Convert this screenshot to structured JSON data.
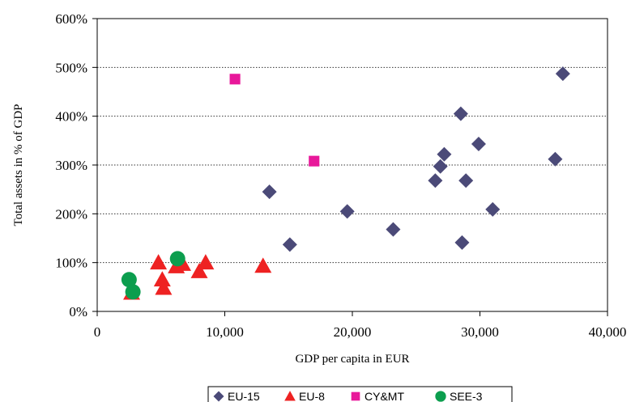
{
  "chart_data": {
    "type": "scatter",
    "xlabel": "GDP per capita in EUR",
    "ylabel": "Total assets in % of GDP",
    "xlim": [
      0,
      40000
    ],
    "ylim": [
      0,
      600
    ],
    "x_ticks": [
      "0",
      "10,000",
      "20,000",
      "30,000",
      "40,000"
    ],
    "y_ticks": [
      "0%",
      "100%",
      "200%",
      "300%",
      "400%",
      "500%",
      "600%"
    ],
    "grid": "horizontal dotted",
    "legend_position": "bottom",
    "series": [
      {
        "name": "EU-15",
        "marker": "diamond",
        "color": "#4b4a78",
        "points": [
          [
            13500,
            245
          ],
          [
            15100,
            137
          ],
          [
            19600,
            205
          ],
          [
            23200,
            168
          ],
          [
            26500,
            268
          ],
          [
            26900,
            297
          ],
          [
            27200,
            322
          ],
          [
            28500,
            405
          ],
          [
            28600,
            141
          ],
          [
            28900,
            268
          ],
          [
            29900,
            343
          ],
          [
            31000,
            209
          ],
          [
            35900,
            312
          ],
          [
            36500,
            487
          ]
        ]
      },
      {
        "name": "EU-8",
        "marker": "triangle",
        "color": "#ee2222",
        "points": [
          [
            2700,
            38
          ],
          [
            4800,
            100
          ],
          [
            5100,
            65
          ],
          [
            5200,
            48
          ],
          [
            6200,
            92
          ],
          [
            6700,
            97
          ],
          [
            8000,
            82
          ],
          [
            8500,
            100
          ],
          [
            13000,
            93
          ]
        ]
      },
      {
        "name": "CY&MT",
        "marker": "square",
        "color": "#e8189a",
        "points": [
          [
            10800,
            476
          ],
          [
            17000,
            308
          ]
        ]
      },
      {
        "name": "SEE-3",
        "marker": "circle",
        "color": "#0c9e4e",
        "points": [
          [
            2500,
            65
          ],
          [
            2800,
            40
          ],
          [
            6300,
            108
          ]
        ]
      }
    ]
  }
}
